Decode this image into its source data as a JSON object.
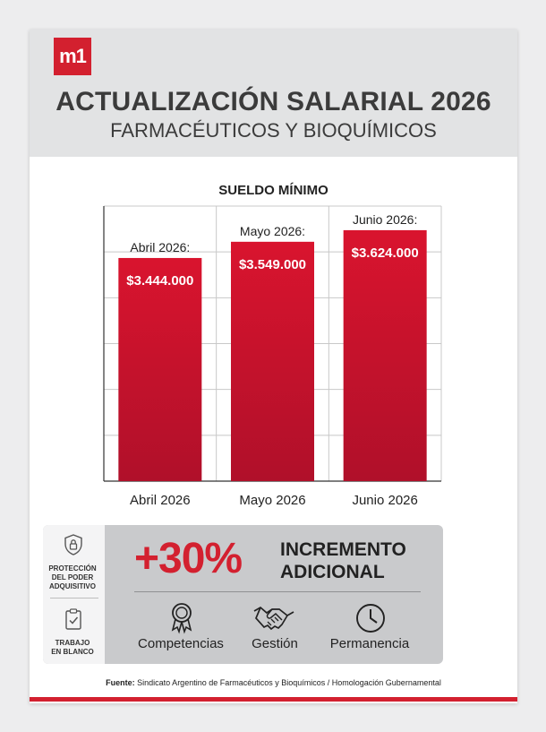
{
  "header": {
    "logo": "m1",
    "title": "ACTUALIZACIÓN SALARIAL 2026",
    "subtitle": "FARMACÉUTICOS Y BIOQUÍMICOS"
  },
  "chart_data": {
    "type": "bar",
    "title": "SUELDO MÍNIMO",
    "categories": [
      "Abril 2026",
      "Mayo 2026",
      "Junio 2026"
    ],
    "bar_labels": [
      "Abril 2026:",
      "Mayo 2026:",
      "Junio 2026:"
    ],
    "values": [
      3444000,
      3549000,
      3624000
    ],
    "value_labels": [
      "$3.444.000",
      "$3.549.000",
      "$3.624.000"
    ],
    "grid": true,
    "colors": {
      "bar_top": "#d9142e",
      "bar_bottom": "#b3102a"
    }
  },
  "highlight": {
    "percent": "+30%",
    "line1": "INCREMENTO",
    "line2": "ADICIONAL"
  },
  "left_items": [
    {
      "icon": "lock-shield-icon",
      "label_lines": [
        "PROTECCIÓN",
        "DEL PODER",
        "ADQUISITIVO"
      ]
    },
    {
      "icon": "clipboard-check-icon",
      "label_lines": [
        "TRABAJO",
        "EN BLANCO"
      ]
    }
  ],
  "features": [
    {
      "icon": "award-ribbon-icon",
      "label": "Competencias"
    },
    {
      "icon": "handshake-icon",
      "label": "Gestión"
    },
    {
      "icon": "clock-icon",
      "label": "Permanencia"
    }
  ],
  "source": {
    "prefix": "Fuente:",
    "text": " Sindicato Argentino de Farmacéuticos y Bioquímicos / Homologación Gubernamental"
  }
}
